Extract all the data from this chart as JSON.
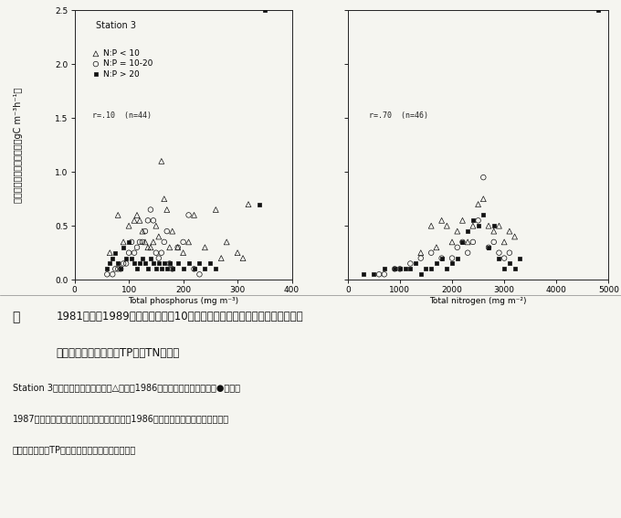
{
  "title": "Station 3",
  "xlabel_left": "Total phosphorus (mg m⁻³)",
  "xlabel_right": "Total nitrogen (mg m⁻²)",
  "xlim_left": [
    0,
    400
  ],
  "xlim_right": [
    0,
    5000
  ],
  "ylim": [
    0,
    2.5
  ],
  "yticks": [
    0.0,
    0.5,
    1.0,
    1.5,
    2.0,
    2.5
  ],
  "xticks_left": [
    0,
    100,
    200,
    300,
    400
  ],
  "xticks_right": [
    0,
    1000,
    2000,
    3000,
    4000,
    5000
  ],
  "annotation_left": "r=.10  (n=44)",
  "annotation_right": "r=.70  (n=46)",
  "legend_labels": [
    "N:P < 10",
    "N:P = 10-20",
    "N:P > 20"
  ],
  "tp_tri": [
    [
      65,
      0.25
    ],
    [
      80,
      0.6
    ],
    [
      90,
      0.35
    ],
    [
      100,
      0.5
    ],
    [
      110,
      0.55
    ],
    [
      115,
      0.6
    ],
    [
      120,
      0.55
    ],
    [
      125,
      0.45
    ],
    [
      130,
      0.35
    ],
    [
      135,
      0.3
    ],
    [
      140,
      0.3
    ],
    [
      145,
      0.35
    ],
    [
      150,
      0.5
    ],
    [
      155,
      0.4
    ],
    [
      160,
      1.1
    ],
    [
      165,
      0.75
    ],
    [
      170,
      0.65
    ],
    [
      175,
      0.3
    ],
    [
      180,
      0.45
    ],
    [
      190,
      0.3
    ],
    [
      200,
      0.25
    ],
    [
      210,
      0.35
    ],
    [
      220,
      0.6
    ],
    [
      240,
      0.3
    ],
    [
      260,
      0.65
    ],
    [
      270,
      0.2
    ],
    [
      280,
      0.35
    ],
    [
      300,
      0.25
    ],
    [
      310,
      0.2
    ],
    [
      320,
      0.7
    ]
  ],
  "tp_circ": [
    [
      60,
      0.05
    ],
    [
      70,
      0.05
    ],
    [
      75,
      0.1
    ],
    [
      80,
      0.1
    ],
    [
      85,
      0.1
    ],
    [
      90,
      0.15
    ],
    [
      95,
      0.15
    ],
    [
      100,
      0.25
    ],
    [
      105,
      0.35
    ],
    [
      110,
      0.25
    ],
    [
      115,
      0.3
    ],
    [
      120,
      0.35
    ],
    [
      125,
      0.35
    ],
    [
      130,
      0.45
    ],
    [
      135,
      0.55
    ],
    [
      140,
      0.65
    ],
    [
      145,
      0.55
    ],
    [
      150,
      0.25
    ],
    [
      155,
      0.2
    ],
    [
      160,
      0.25
    ],
    [
      165,
      0.35
    ],
    [
      170,
      0.45
    ],
    [
      175,
      0.15
    ],
    [
      180,
      0.1
    ],
    [
      190,
      0.3
    ],
    [
      200,
      0.35
    ],
    [
      210,
      0.6
    ],
    [
      220,
      0.1
    ],
    [
      230,
      0.05
    ]
  ],
  "tp_dot": [
    [
      60,
      0.1
    ],
    [
      65,
      0.15
    ],
    [
      70,
      0.2
    ],
    [
      75,
      0.25
    ],
    [
      80,
      0.15
    ],
    [
      85,
      0.1
    ],
    [
      90,
      0.3
    ],
    [
      95,
      0.2
    ],
    [
      100,
      0.35
    ],
    [
      105,
      0.2
    ],
    [
      110,
      0.15
    ],
    [
      115,
      0.1
    ],
    [
      120,
      0.15
    ],
    [
      125,
      0.2
    ],
    [
      130,
      0.15
    ],
    [
      135,
      0.1
    ],
    [
      140,
      0.2
    ],
    [
      145,
      0.15
    ],
    [
      150,
      0.1
    ],
    [
      155,
      0.15
    ],
    [
      160,
      0.1
    ],
    [
      165,
      0.15
    ],
    [
      170,
      0.1
    ],
    [
      175,
      0.15
    ],
    [
      180,
      0.1
    ],
    [
      190,
      0.15
    ],
    [
      200,
      0.1
    ],
    [
      210,
      0.15
    ],
    [
      220,
      0.1
    ],
    [
      230,
      0.15
    ],
    [
      240,
      0.1
    ],
    [
      250,
      0.15
    ],
    [
      260,
      0.1
    ],
    [
      340,
      0.7
    ],
    [
      350,
      2.5
    ]
  ],
  "tn_tri": [
    [
      1400,
      0.25
    ],
    [
      1600,
      0.5
    ],
    [
      1700,
      0.3
    ],
    [
      1800,
      0.55
    ],
    [
      1900,
      0.5
    ],
    [
      2000,
      0.35
    ],
    [
      2100,
      0.45
    ],
    [
      2200,
      0.55
    ],
    [
      2300,
      0.35
    ],
    [
      2400,
      0.5
    ],
    [
      2500,
      0.7
    ],
    [
      2600,
      0.75
    ],
    [
      2700,
      0.5
    ],
    [
      2800,
      0.45
    ],
    [
      2900,
      0.5
    ],
    [
      3000,
      0.35
    ],
    [
      3100,
      0.45
    ],
    [
      3200,
      0.4
    ]
  ],
  "tn_circ": [
    [
      600,
      0.05
    ],
    [
      700,
      0.05
    ],
    [
      900,
      0.1
    ],
    [
      1000,
      0.1
    ],
    [
      1200,
      0.15
    ],
    [
      1400,
      0.2
    ],
    [
      1600,
      0.25
    ],
    [
      1800,
      0.2
    ],
    [
      2000,
      0.2
    ],
    [
      2100,
      0.3
    ],
    [
      2200,
      0.35
    ],
    [
      2300,
      0.25
    ],
    [
      2400,
      0.35
    ],
    [
      2500,
      0.55
    ],
    [
      2600,
      0.95
    ],
    [
      2700,
      0.3
    ],
    [
      2800,
      0.35
    ],
    [
      2900,
      0.25
    ],
    [
      3000,
      0.2
    ],
    [
      3100,
      0.25
    ]
  ],
  "tn_dot": [
    [
      300,
      0.05
    ],
    [
      500,
      0.05
    ],
    [
      700,
      0.1
    ],
    [
      900,
      0.1
    ],
    [
      1000,
      0.1
    ],
    [
      1100,
      0.1
    ],
    [
      1200,
      0.1
    ],
    [
      1300,
      0.15
    ],
    [
      1400,
      0.05
    ],
    [
      1500,
      0.1
    ],
    [
      1600,
      0.1
    ],
    [
      1700,
      0.15
    ],
    [
      1800,
      0.2
    ],
    [
      1900,
      0.1
    ],
    [
      2000,
      0.15
    ],
    [
      2100,
      0.2
    ],
    [
      2200,
      0.35
    ],
    [
      2300,
      0.45
    ],
    [
      2400,
      0.55
    ],
    [
      2500,
      0.5
    ],
    [
      2600,
      0.6
    ],
    [
      2700,
      0.3
    ],
    [
      2800,
      0.5
    ],
    [
      2900,
      0.2
    ],
    [
      3000,
      0.1
    ],
    [
      3100,
      0.15
    ],
    [
      3200,
      0.1
    ],
    [
      3300,
      0.2
    ],
    [
      4800,
      2.5
    ]
  ],
  "background_color": "#f5f5f0",
  "text_color": "#111111",
  "caption_line1": "図、1981年から1989年まで５月から１０月（水温が律速にならない時期）の光飽",
  "caption_line2": "和状態の光合成速度とTP及びTNの関係",
  "desc_line1": "Station 3は高浜入り中央である。△は主に1986年以前の夏のデータで，●は主に",
  "desc_line2": "1987年以降の夏のデータと対応する。つまり1986年以前のデータでは光飽和状態",
  "desc_line3": "の光合成速度がTPと相関していないのが分かる。"
}
